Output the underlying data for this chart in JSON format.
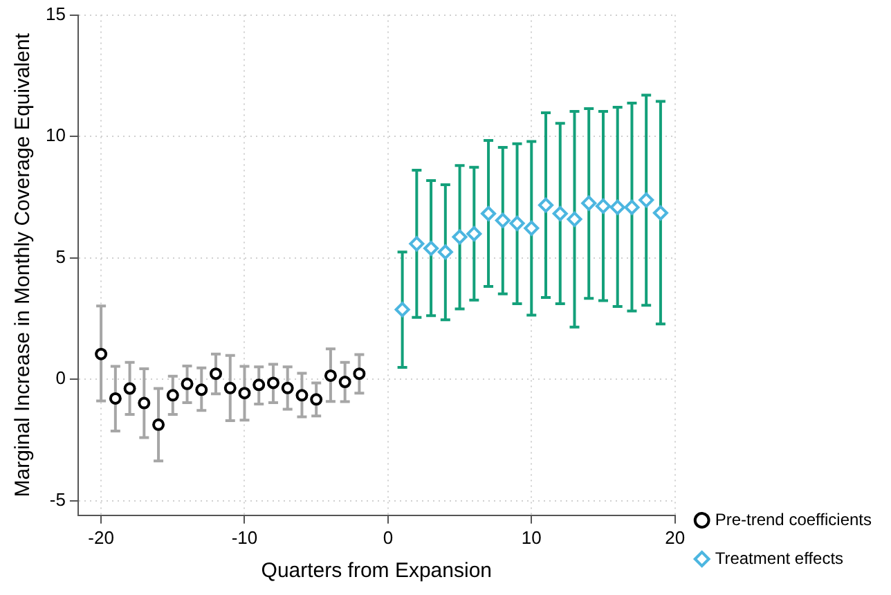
{
  "chart_data": {
    "type": "scatter",
    "xlabel": "Quarters from Expansion",
    "ylabel": "Marginal Increase in Monthly Coverage Equivalent",
    "xlim": [
      -21.6,
      20
    ],
    "xticks": [
      -20,
      -10,
      0,
      10,
      20
    ],
    "ylim": [
      -5.6,
      15
    ],
    "yticks": [
      -5,
      0,
      5,
      10,
      15
    ],
    "grid": true,
    "legend": "bottom right",
    "series": [
      {
        "name": "Pre-trend coefficients",
        "color": "#000000",
        "marker": "circle",
        "x": [
          -20,
          -19,
          -18,
          -17,
          -16,
          -15,
          -14,
          -13,
          -12,
          -11,
          -10,
          -9,
          -8,
          -7,
          -6,
          -5,
          -4,
          -3,
          -2
        ],
        "values": [
          1.04,
          -0.79,
          -0.38,
          -0.98,
          -1.87,
          -0.66,
          -0.19,
          -0.43,
          0.23,
          -0.36,
          -0.57,
          -0.23,
          -0.15,
          -0.36,
          -0.66,
          -0.83,
          0.15,
          -0.11,
          0.23
        ],
        "errors": [
          [
            -0.89,
            3.02
          ],
          [
            -2.13,
            0.53
          ],
          [
            -1.45,
            0.7
          ],
          [
            -2.4,
            0.43
          ],
          [
            -3.36,
            -0.38
          ],
          [
            -1.45,
            0.13
          ],
          [
            -0.96,
            0.55
          ],
          [
            -1.28,
            0.47
          ],
          [
            -0.6,
            1.04
          ],
          [
            -1.7,
            0.98
          ],
          [
            -1.68,
            0.53
          ],
          [
            -1.02,
            0.51
          ],
          [
            -0.96,
            0.62
          ],
          [
            -1.23,
            0.51
          ],
          [
            -1.55,
            0.25
          ],
          [
            -1.51,
            -0.15
          ],
          [
            -0.91,
            1.25
          ],
          [
            -0.92,
            0.7
          ],
          [
            -0.57,
            1.02
          ]
        ]
      },
      {
        "name": "Treatment effects",
        "color": "#4cb6e0",
        "marker": "diamond",
        "x": [
          1,
          2,
          3,
          4,
          5,
          6,
          7,
          8,
          9,
          10,
          11,
          12,
          13,
          14,
          15,
          16,
          17,
          18,
          19
        ],
        "values": [
          2.87,
          5.58,
          5.39,
          5.24,
          5.86,
          5.99,
          6.82,
          6.54,
          6.42,
          6.22,
          7.17,
          6.82,
          6.59,
          7.25,
          7.13,
          7.08,
          7.08,
          7.38,
          6.85
        ],
        "errors": [
          [
            0.49,
            5.24
          ],
          [
            2.55,
            8.61
          ],
          [
            2.62,
            8.18
          ],
          [
            2.45,
            8.01
          ],
          [
            2.9,
            8.8
          ],
          [
            3.26,
            8.73
          ],
          [
            3.82,
            9.83
          ],
          [
            3.52,
            9.55
          ],
          [
            3.11,
            9.7
          ],
          [
            2.64,
            9.79
          ],
          [
            3.37,
            10.97
          ],
          [
            3.11,
            10.54
          ],
          [
            2.15,
            11.03
          ],
          [
            3.33,
            11.14
          ],
          [
            3.24,
            11.03
          ],
          [
            3.0,
            11.2
          ],
          [
            2.81,
            11.37
          ],
          [
            3.05,
            11.7
          ],
          [
            2.28,
            11.44
          ]
        ]
      }
    ]
  }
}
